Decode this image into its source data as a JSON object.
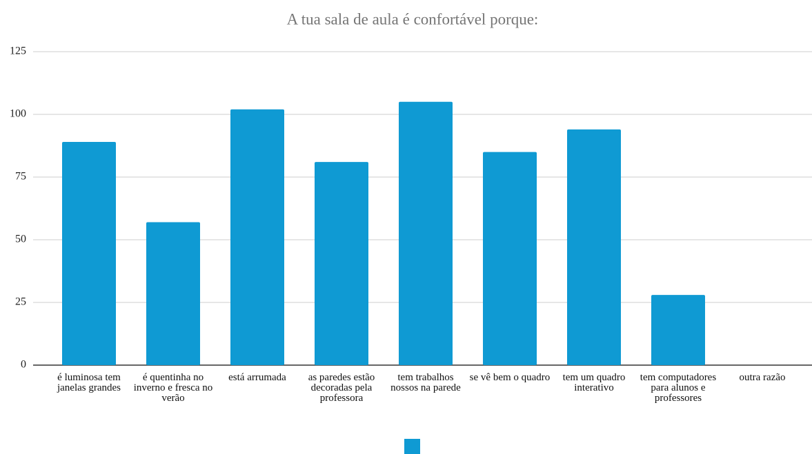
{
  "chart_data": {
    "type": "bar",
    "title": "A tua sala de  aula é confortável porque:",
    "categories": [
      "é luminosa tem janelas grandes",
      "é quentinha no inverno e fresca no verão",
      "está arrumada",
      "as paredes estão decoradas pela professora",
      "tem trabalhos nossos na parede",
      "se vê bem o quadro",
      "tem um quadro interativo",
      "tem computadores para alunos e professores",
      "outra razão"
    ],
    "values": [
      89,
      57,
      102,
      81,
      105,
      85,
      94,
      28,
      0
    ],
    "color": "#0f9ad3",
    "ylim": [
      0,
      125
    ],
    "yticks": [
      0,
      25,
      50,
      75,
      100,
      125
    ],
    "grid": true
  }
}
